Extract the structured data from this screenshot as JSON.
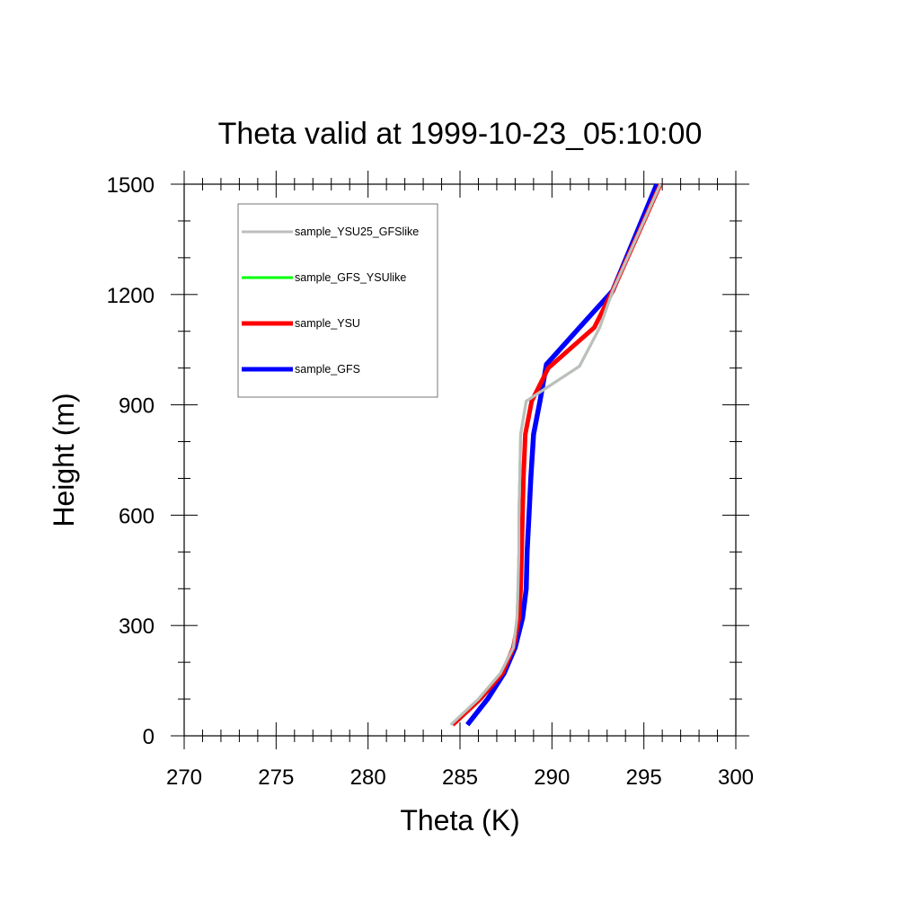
{
  "chart_data": {
    "type": "line",
    "title": "Theta valid at 1999-10-23_05:10:00",
    "xlabel": "Theta (K)",
    "ylabel": "Height (m)",
    "xlim": [
      270,
      300
    ],
    "ylim": [
      0,
      1500
    ],
    "x_ticks": [
      270,
      275,
      280,
      285,
      290,
      295,
      300
    ],
    "y_ticks": [
      0,
      300,
      600,
      900,
      1200,
      1500
    ],
    "x_minor_step": 1,
    "y_minor_step": 100,
    "grid": false,
    "legend_position": "top-left",
    "series": [
      {
        "name": "sample_YSU25_GFSlike",
        "color": "#bebebe",
        "points": [
          [
            284.5,
            30
          ],
          [
            286.0,
            100
          ],
          [
            287.2,
            170
          ],
          [
            287.9,
            240
          ],
          [
            288.1,
            320
          ],
          [
            288.15,
            400
          ],
          [
            288.2,
            500
          ],
          [
            288.2,
            600
          ],
          [
            288.25,
            700
          ],
          [
            288.3,
            820
          ],
          [
            288.6,
            910
          ],
          [
            291.5,
            1005
          ],
          [
            292.6,
            1110
          ],
          [
            293.3,
            1210
          ],
          [
            295.9,
            1500
          ]
        ]
      },
      {
        "name": "sample_GFS_YSUlike",
        "color": "#00ff00",
        "points": [
          [
            284.5,
            30
          ],
          [
            286.0,
            100
          ],
          [
            287.2,
            170
          ],
          [
            287.9,
            240
          ],
          [
            288.1,
            320
          ],
          [
            288.15,
            400
          ],
          [
            288.2,
            500
          ],
          [
            288.2,
            600
          ],
          [
            288.25,
            700
          ],
          [
            288.3,
            820
          ],
          [
            288.6,
            910
          ],
          [
            291.5,
            1005
          ],
          [
            292.6,
            1110
          ],
          [
            293.3,
            1210
          ],
          [
            295.9,
            1500
          ]
        ]
      },
      {
        "name": "sample_YSU",
        "color": "#ff0000",
        "points": [
          [
            284.6,
            30
          ],
          [
            286.1,
            100
          ],
          [
            287.3,
            170
          ],
          [
            287.9,
            240
          ],
          [
            288.2,
            320
          ],
          [
            288.3,
            400
          ],
          [
            288.35,
            500
          ],
          [
            288.4,
            600
          ],
          [
            288.45,
            700
          ],
          [
            288.55,
            820
          ],
          [
            288.9,
            910
          ],
          [
            289.8,
            1000
          ],
          [
            292.3,
            1110
          ],
          [
            293.3,
            1210
          ],
          [
            295.9,
            1500
          ]
        ]
      },
      {
        "name": "sample_GFS",
        "color": "#0000ff",
        "points": [
          [
            285.4,
            30
          ],
          [
            286.5,
            100
          ],
          [
            287.4,
            170
          ],
          [
            288.0,
            240
          ],
          [
            288.4,
            320
          ],
          [
            288.6,
            400
          ],
          [
            288.65,
            500
          ],
          [
            288.75,
            600
          ],
          [
            288.85,
            700
          ],
          [
            289.0,
            820
          ],
          [
            289.35,
            910
          ],
          [
            289.7,
            1010
          ],
          [
            291.5,
            1110
          ],
          [
            293.3,
            1210
          ],
          [
            295.7,
            1500
          ]
        ]
      }
    ]
  }
}
